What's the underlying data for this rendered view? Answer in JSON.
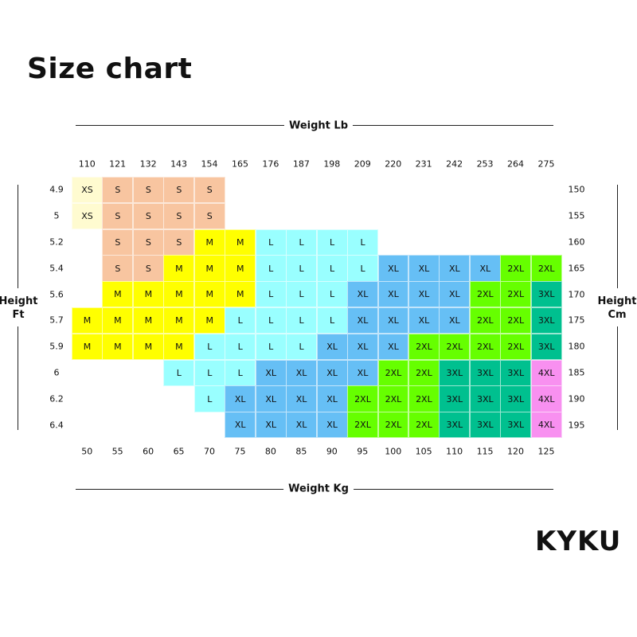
{
  "title": "Size chart",
  "brand": "KYKU",
  "chart_data": {
    "type": "table",
    "top_axis_title": "Weight Lb",
    "bottom_axis_title": "Weight Kg",
    "left_axis_title": "Height Ft",
    "right_axis_title": "Height Cm",
    "weight_lb": [
      "110",
      "121",
      "132",
      "143",
      "154",
      "165",
      "176",
      "187",
      "198",
      "209",
      "220",
      "231",
      "242",
      "253",
      "264",
      "275"
    ],
    "weight_kg": [
      "50",
      "55",
      "60",
      "65",
      "70",
      "75",
      "80",
      "85",
      "90",
      "95",
      "100",
      "105",
      "110",
      "115",
      "120",
      "125"
    ],
    "height_ft": [
      "4.9",
      "5",
      "5.2",
      "5.4",
      "5.6",
      "5.7",
      "5.9",
      "6",
      "6.2",
      "6.4"
    ],
    "height_cm": [
      "150",
      "155",
      "160",
      "165",
      "170",
      "175",
      "180",
      "185",
      "190",
      "195"
    ],
    "sizes": [
      [
        "XS",
        "S",
        "S",
        "S",
        "S",
        "",
        "",
        "",
        "",
        "",
        "",
        "",
        "",
        "",
        "",
        ""
      ],
      [
        "XS",
        "S",
        "S",
        "S",
        "S",
        "",
        "",
        "",
        "",
        "",
        "",
        "",
        "",
        "",
        "",
        ""
      ],
      [
        "",
        "S",
        "S",
        "S",
        "M",
        "M",
        "L",
        "L",
        "L",
        "L",
        "",
        "",
        "",
        "",
        "",
        ""
      ],
      [
        "",
        "S",
        "S",
        "M",
        "M",
        "M",
        "L",
        "L",
        "L",
        "L",
        "XL",
        "XL",
        "XL",
        "XL",
        "2XL",
        "2XL"
      ],
      [
        "",
        "M",
        "M",
        "M",
        "M",
        "M",
        "L",
        "L",
        "L",
        "XL",
        "XL",
        "XL",
        "XL",
        "2XL",
        "2XL",
        "3XL"
      ],
      [
        "M",
        "M",
        "M",
        "M",
        "M",
        "L",
        "L",
        "L",
        "L",
        "XL",
        "XL",
        "XL",
        "XL",
        "2XL",
        "2XL",
        "3XL"
      ],
      [
        "M",
        "M",
        "M",
        "M",
        "L",
        "L",
        "L",
        "L",
        "XL",
        "XL",
        "XL",
        "2XL",
        "2XL",
        "2XL",
        "2XL",
        "3XL"
      ],
      [
        "",
        "",
        "",
        "L",
        "L",
        "L",
        "XL",
        "XL",
        "XL",
        "XL",
        "2XL",
        "2XL",
        "3XL",
        "3XL",
        "3XL",
        "4XL"
      ],
      [
        "",
        "",
        "",
        "",
        "L",
        "XL",
        "XL",
        "XL",
        "XL",
        "2XL",
        "2XL",
        "2XL",
        "3XL",
        "3XL",
        "3XL",
        "4XL"
      ],
      [
        "",
        "",
        "",
        "",
        "",
        "XL",
        "XL",
        "XL",
        "XL",
        "2XL",
        "2XL",
        "2XL",
        "3XL",
        "3XL",
        "3XL",
        "4XL"
      ]
    ],
    "size_colors": {
      "XS": "#fffbd0",
      "S": "#f8c5a0",
      "M": "#ffff00",
      "L": "#99ffff",
      "XL": "#66bff5",
      "2XL": "#66ff00",
      "3XL": "#00c08f",
      "4XL": "#f890f0"
    }
  }
}
